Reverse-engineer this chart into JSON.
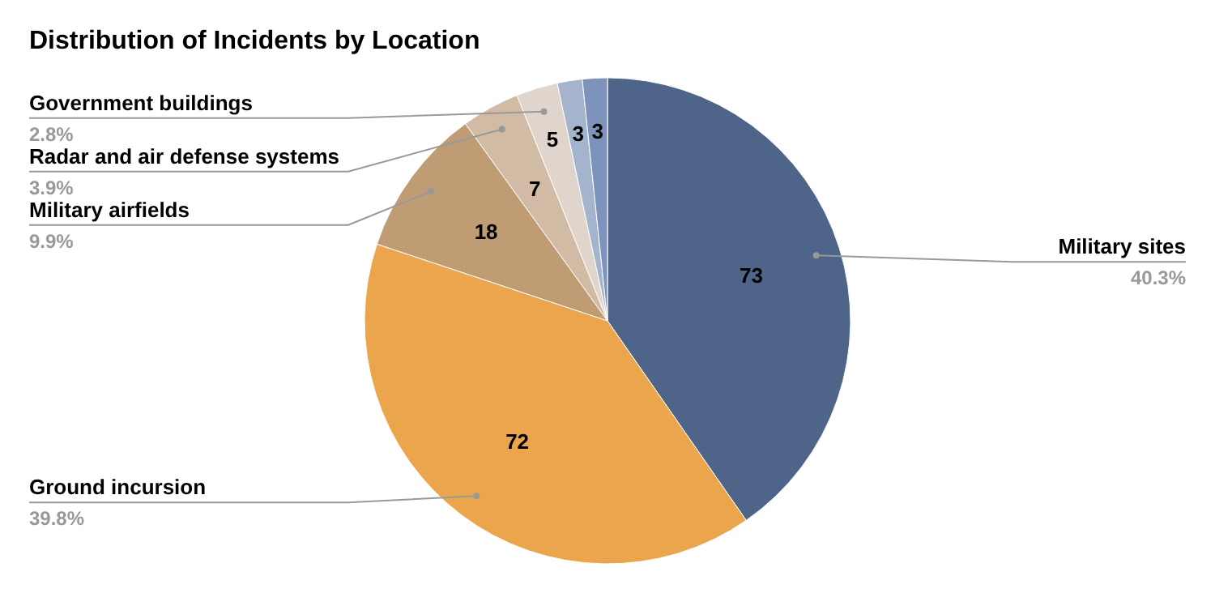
{
  "chart_data": {
    "type": "pie",
    "title": "Distribution of Incidents by Location",
    "categories": [
      "Military sites",
      "Ground incursion",
      "Military airfields",
      "Radar and air defense systems",
      "Government buildings",
      null,
      null
    ],
    "values": [
      73,
      72,
      18,
      7,
      5,
      3,
      3
    ],
    "colors": [
      "#4e6488",
      "#eba54c",
      "#c09c74",
      "#d1bba5",
      "#e0d5cc",
      "#a5b4cd",
      "#7d93bb"
    ],
    "data_labels": true,
    "annotations": [
      "40.3%",
      "39.8%",
      "9.9%",
      "3.9%",
      "2.8%"
    ]
  }
}
